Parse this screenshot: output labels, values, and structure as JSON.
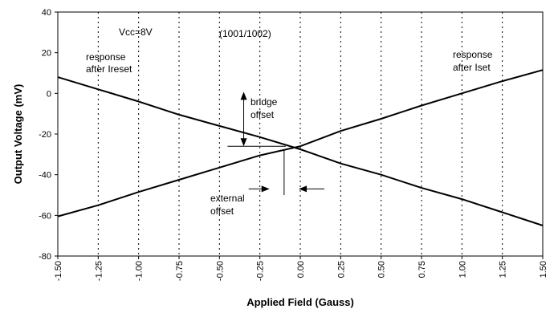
{
  "chart_data": {
    "type": "line",
    "title": "",
    "xlabel": "Applied Field (Gauss)",
    "ylabel": "Output Voltage (mV)",
    "xlim": [
      -1.5,
      1.5
    ],
    "ylim": [
      -80,
      40
    ],
    "x_ticks": [
      -1.5,
      -1.25,
      -1.0,
      -0.75,
      -0.5,
      -0.25,
      0.0,
      0.25,
      0.5,
      0.75,
      1.0,
      1.25,
      1.5
    ],
    "x_tick_labels": [
      "-1.50",
      "-1.25",
      "-1.00",
      "-0.75",
      "-0.50",
      "-0.25",
      "0.00",
      "0.25",
      "0.50",
      "0.75",
      "1.00",
      "1.25",
      "1.50"
    ],
    "y_ticks": [
      -80,
      -60,
      -40,
      -20,
      0,
      20,
      40
    ],
    "y_tick_labels": [
      "-80",
      "-60",
      "-40",
      "-20",
      "0",
      "20",
      "40"
    ],
    "grid": "vertical dotted",
    "series": [
      {
        "name": "response after Ireset",
        "x": [
          -1.5,
          -1.25,
          -1.0,
          -0.75,
          -0.5,
          -0.25,
          0.0,
          0.25,
          0.5,
          0.75,
          1.0,
          1.25,
          1.5
        ],
        "values": [
          8,
          2,
          -4,
          -10.5,
          -16,
          -21.5,
          -27.5,
          -34.5,
          -40,
          -46.5,
          -52,
          -58.5,
          -65
        ]
      },
      {
        "name": "response after Iset",
        "x": [
          -1.5,
          -1.25,
          -1.0,
          -0.75,
          -0.5,
          -0.25,
          0.0,
          0.25,
          0.5,
          0.75,
          1.0,
          1.25,
          1.5
        ],
        "values": [
          -60.5,
          -55,
          -48.5,
          -42.5,
          -36.5,
          -30.5,
          -26,
          -18.5,
          -12.5,
          -6,
          0,
          6,
          11.5
        ]
      }
    ],
    "annotations": {
      "vcc": "Vcc=8V",
      "part": "(1001/1002)",
      "ireset_line1": "response",
      "ireset_line2": "after Ireset",
      "iset_line1": "response",
      "iset_line2": "after Iset",
      "bridge_line1": "bridge",
      "bridge_line2": "offset",
      "external_line1": "external",
      "external_line2": "offset",
      "bridge_offset_level": -26,
      "external_offset_x": -0.1
    }
  }
}
